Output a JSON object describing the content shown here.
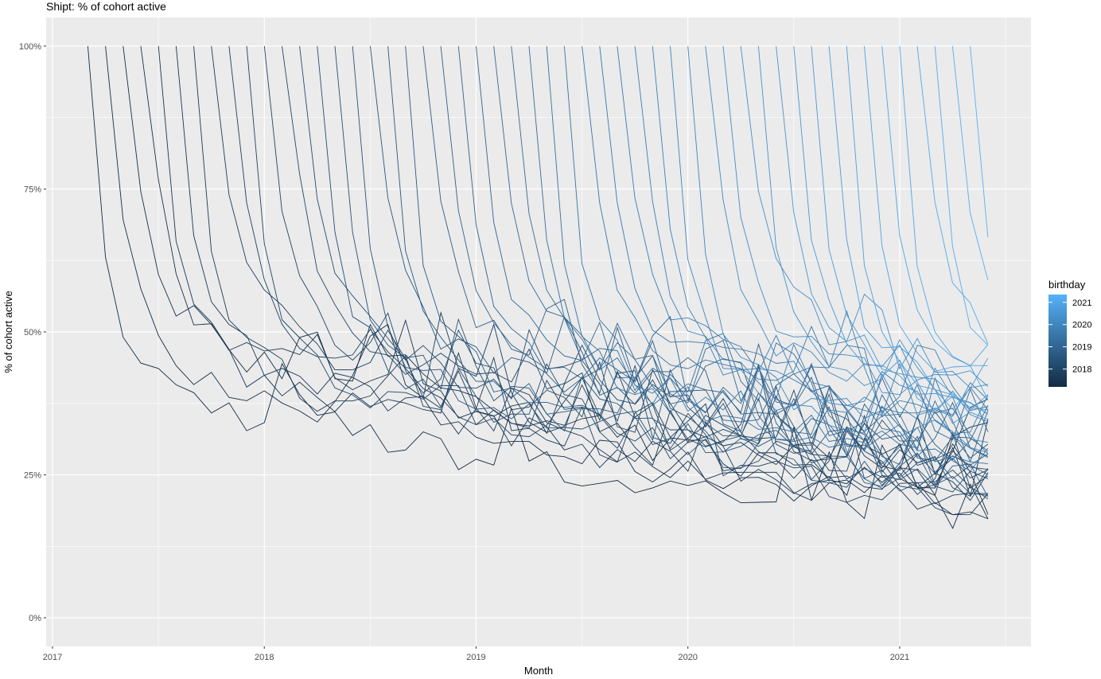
{
  "chart_data": {
    "type": "line",
    "title": "Shipt: % of cohort active",
    "xlabel": "Month",
    "ylabel": "% of cohort active",
    "xlim": [
      2016.97,
      2021.62
    ],
    "ylim": [
      -0.05,
      1.05
    ],
    "x_ticks": [
      2017,
      2018,
      2019,
      2020,
      2021
    ],
    "x_tick_labels": [
      "2017",
      "2018",
      "2019",
      "2020",
      "2021"
    ],
    "y_ticks": [
      0,
      0.25,
      0.5,
      0.75,
      1
    ],
    "y_tick_labels": [
      "0%",
      "25%",
      "50%",
      "75%",
      "100%"
    ],
    "grid": true,
    "legend": {
      "title": "birthday",
      "placement": "right",
      "labels": [
        "2021",
        "2020",
        "2019",
        "2018"
      ],
      "values": [
        2021,
        2020,
        2019,
        2018
      ],
      "range": [
        2017.2,
        2021.35
      ],
      "color_low": "#132B43",
      "color_high": "#56B1F7"
    },
    "series_note_cohorts": {
      "first_start": 2017.167,
      "last_start": 2021.333,
      "count": 51,
      "end": 2021.417
    },
    "anchor_curve": {
      "month_offsets": [
        0,
        1,
        2,
        3,
        4,
        6,
        9,
        12,
        18,
        24,
        30,
        36,
        42,
        48,
        52
      ],
      "active_share": [
        1.0,
        0.69,
        0.56,
        0.5,
        0.47,
        0.43,
        0.4,
        0.38,
        0.34,
        0.3,
        0.27,
        0.25,
        0.23,
        0.21,
        0.2
      ]
    },
    "background": "#EBEBEB",
    "grid_color": "#FFFFFF"
  }
}
